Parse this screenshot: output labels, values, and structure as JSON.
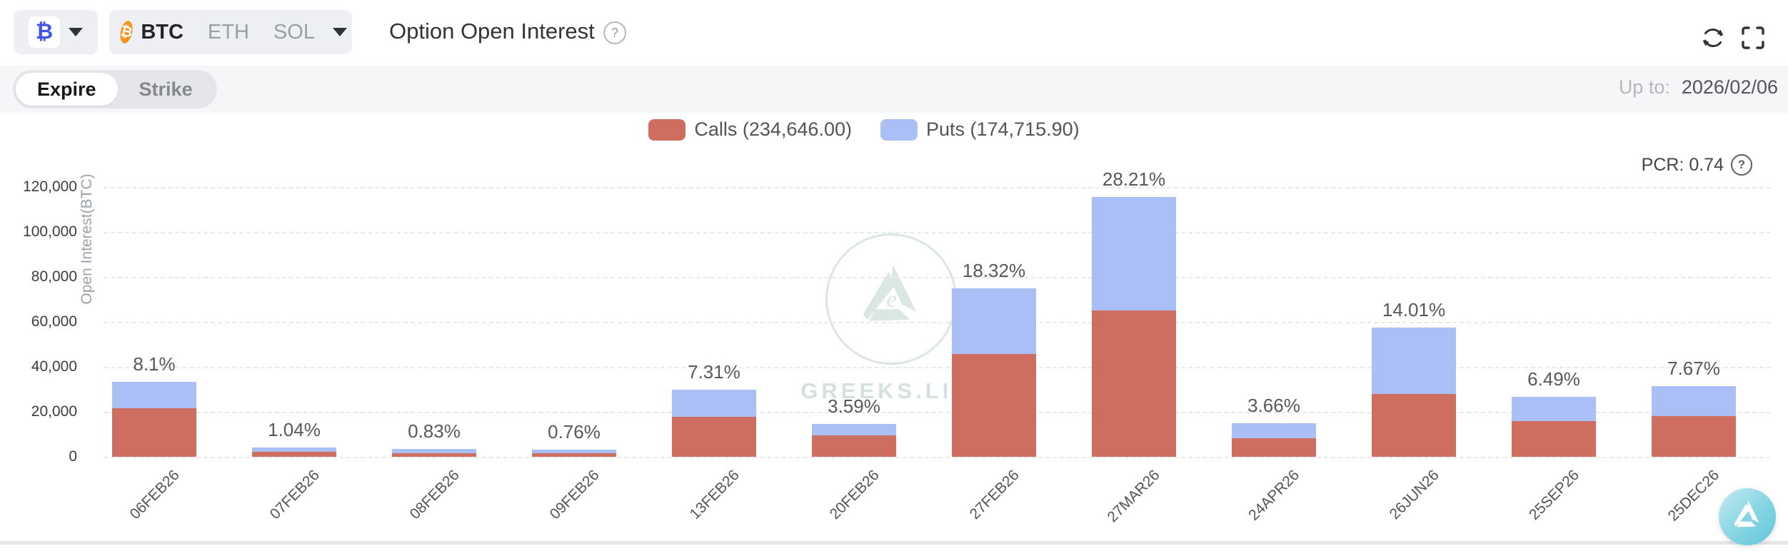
{
  "header": {
    "currency_button": {
      "symbol": "₿"
    },
    "asset_switcher": {
      "btc_symbol": "₿",
      "items": [
        {
          "label": "BTC",
          "active": true
        },
        {
          "label": "ETH",
          "active": false
        },
        {
          "label": "SOL",
          "active": false
        }
      ]
    },
    "title": "Option Open Interest",
    "help_glyph": "?"
  },
  "toolbar": {
    "tabs": [
      {
        "label": "Expire",
        "active": true
      },
      {
        "label": "Strike",
        "active": false
      }
    ],
    "up_to_label": "Up to:",
    "up_to_value": "2026/02/06"
  },
  "chart_data": {
    "type": "bar",
    "stacked": true,
    "title": "Option Open Interest",
    "legend": [
      {
        "label": "Calls (234,646.00)",
        "color": "#cd6e60"
      },
      {
        "label": "Puts (174,715.90)",
        "color": "#aabff5"
      }
    ],
    "legend_position": "top-center",
    "pcr_text": "PCR: 0.74",
    "ylabel": "Open Interest(BTC)",
    "ylim": [
      0,
      120000
    ],
    "ytick_labels": [
      "0",
      "20,000",
      "40,000",
      "60,000",
      "80,000",
      "100,000",
      "120,000"
    ],
    "grid": "horizontal-dashed",
    "categories": [
      "06FEB26",
      "07FEB26",
      "08FEB26",
      "09FEB26",
      "13FEB26",
      "20FEB26",
      "27FEB26",
      "27MAR26",
      "24APR26",
      "26JUN26",
      "25SEP26",
      "25DEC26"
    ],
    "series": [
      {
        "name": "Calls",
        "color": "#cd6e60",
        "values": [
          21600,
          2200,
          1700,
          1700,
          17800,
          9400,
          45700,
          65100,
          8350,
          27900,
          15750,
          18000
        ]
      },
      {
        "name": "Puts",
        "color": "#aabff5",
        "values": [
          11600,
          2050,
          1700,
          1400,
          12150,
          5270,
          29300,
          50350,
          6630,
          29480,
          10820,
          13400
        ]
      }
    ],
    "percent_labels": [
      "8.1%",
      "1.04%",
      "0.83%",
      "0.76%",
      "7.31%",
      "3.59%",
      "18.32%",
      "28.21%",
      "3.66%",
      "14.01%",
      "6.49%",
      "7.67%"
    ],
    "totals": {
      "calls": "234,646.00",
      "puts": "174,715.90",
      "pcr": "0.74"
    }
  },
  "watermark": {
    "brand": "GREEKS.LIVE"
  },
  "colors": {
    "calls": "#cd6e60",
    "puts": "#aabff5",
    "accent_blue": "#4254e8",
    "btc_orange": "#f7931a",
    "watermark": "#dbe7e1",
    "float_button": "#5fc6d9"
  }
}
